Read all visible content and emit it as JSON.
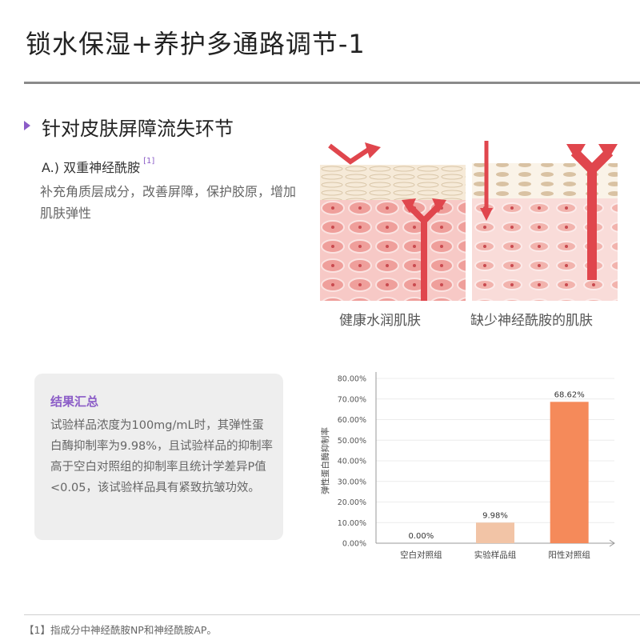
{
  "header": {
    "title": "锁水保湿+养护多通路调节-1"
  },
  "section": {
    "heading": "针对皮肤屏障流失环节",
    "subheading": "A.) 双重神经酰胺",
    "subheading_ref": "[1]",
    "body": "补充角质层成分，改善屏障，保护胶原，增加肌肤弹性"
  },
  "illustrations": [
    {
      "caption": "健康水润肌肤"
    },
    {
      "caption": "缺少神经酰胺的肌肤"
    }
  ],
  "summary": {
    "title": "结果汇总",
    "body": "试验样品浓度为100mg/mL时，其弹性蛋白酶抑制率为9.98%，且试验样品的抑制率高于空白对照组的抑制率且统计学差异P值<0.05，该试验样品具有紧致抗皱功效。"
  },
  "footnote": "【1】指成分中神经酰胺NP和神经酰胺AP。",
  "colors": {
    "accent": "#8b5cc7",
    "bar_blank": "#e8e8e8",
    "bar_sample": "#f2c4a6",
    "bar_positive": "#f58a5a",
    "arrow_red": "#e0464d"
  },
  "chart_data": {
    "type": "bar",
    "categories": [
      "空白对照组",
      "实验样品组",
      "阳性对照组"
    ],
    "values": [
      0.0,
      9.98,
      68.62
    ],
    "value_labels": [
      "0.00%",
      "9.98%",
      "68.62%"
    ],
    "ylabel": "弹性蛋白酶抑制率",
    "ylim": [
      0,
      80
    ],
    "yticks": [
      "0.00%",
      "10.00%",
      "20.00%",
      "30.00%",
      "40.00%",
      "50.00%",
      "60.00%",
      "70.00%",
      "80.00%"
    ],
    "ytick_values": [
      0,
      10,
      20,
      30,
      40,
      50,
      60,
      70,
      80
    ],
    "grid": true,
    "legend": "none"
  }
}
